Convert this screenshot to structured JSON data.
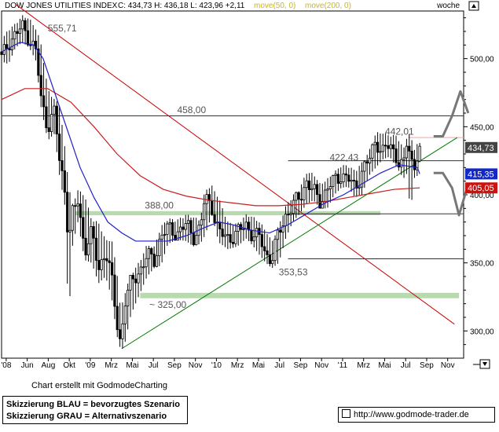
{
  "header": {
    "instrument": "DOW JONES UTILITIES INDEX",
    "quote": "C: 434,73 H: 436,18 L: 423,96 +2,11",
    "ma1": "move(50, 0)",
    "ma2": "move(200, 0)",
    "period": "woche"
  },
  "footer": {
    "credit": "Chart erstellt mit GodmodeCharting",
    "scenario_blue": "Skizzierung BLAU = bevorzugtes Szenario",
    "scenario_grey": "Skizzierung GRAU = Alternativszenario",
    "link": "http://www.godmode-trader.de"
  },
  "colors": {
    "ma50": "#1e1ec8",
    "ma200": "#c81e1e",
    "downtrend": "#cc0000",
    "uptrend": "#007a00",
    "zone": "#a9d6a0",
    "scenario": "#777777",
    "price_tag": "#444444",
    "ma50_tag": "#1428c8",
    "ma200_tag": "#cc1111"
  },
  "chart_data": {
    "type": "candlestick",
    "title": "DOW JONES UTILITIES INDEX",
    "period": "woche",
    "ylim": [
      280,
      535
    ],
    "y_ticks": [
      "300,00",
      "350,00",
      "400,00",
      "450,00",
      "500,00"
    ],
    "x_ticks": [
      "'08",
      "Jun",
      "Aug",
      "Okt",
      "'09",
      "Mrz",
      "Mai",
      "Jul",
      "Sep",
      "Nov",
      "'10",
      "Mrz",
      "Mai",
      "Jul",
      "Sep",
      "Nov",
      "'11",
      "Mrz",
      "Mai",
      "Jul",
      "Sep",
      "Nov"
    ],
    "last": {
      "close": 434.73,
      "high": 436.18,
      "low": 423.96,
      "change": 2.11
    },
    "right_tags": [
      {
        "label": "434,73",
        "value": 434.73,
        "kind": "price"
      },
      {
        "label": "415,35",
        "value": 415.35,
        "kind": "ma50"
      },
      {
        "label": "405,05",
        "value": 405.05,
        "kind": "ma200"
      }
    ],
    "horizontal_levels": [
      {
        "label": "458,00",
        "value": 458.0,
        "color": "black"
      },
      {
        "label": "442,01",
        "value": 442.01,
        "color": "pink"
      },
      {
        "label": "",
        "value": 425.0,
        "color": "black"
      },
      {
        "label": "",
        "value": 386.0,
        "color": "black"
      },
      {
        "label": "",
        "value": 353.0,
        "color": "black"
      }
    ],
    "zones": [
      {
        "label": "388,00",
        "from": 385.0,
        "to": 388.0
      },
      {
        "label": "~ 325,00",
        "from": 324.0,
        "to": 328.0
      }
    ],
    "annotations": [
      {
        "label": "555,71",
        "value": 555.71
      },
      {
        "label": "422,43",
        "value": 422.43
      },
      {
        "label": "353,53",
        "value": 353.53
      }
    ],
    "trendlines": [
      {
        "name": "downtrend",
        "points": [
          [
            0.03,
            540
          ],
          [
            0.98,
            305
          ]
        ]
      },
      {
        "name": "uptrend",
        "points": [
          [
            0.26,
            287
          ],
          [
            0.986,
            442
          ]
        ]
      }
    ],
    "scenarios": [
      {
        "name": "grau-oben",
        "points": [
          [
            0.935,
            443
          ],
          [
            0.955,
            443
          ],
          [
            0.975,
            458
          ],
          [
            0.993,
            476
          ],
          [
            1.01,
            460
          ]
        ]
      },
      {
        "name": "grau-unten",
        "points": [
          [
            0.935,
            416
          ],
          [
            0.955,
            416
          ],
          [
            0.975,
            405
          ],
          [
            0.99,
            385
          ],
          [
            1.01,
            408
          ]
        ]
      }
    ],
    "candle_anchors": [
      [
        0.0,
        505,
        500,
        512,
        498
      ],
      [
        0.015,
        500,
        512,
        520,
        496
      ],
      [
        0.03,
        512,
        518,
        524,
        508
      ],
      [
        0.045,
        518,
        523,
        530,
        512
      ],
      [
        0.06,
        523,
        515,
        528,
        508
      ],
      [
        0.075,
        515,
        505,
        520,
        498
      ],
      [
        0.085,
        505,
        470,
        510,
        465
      ],
      [
        0.1,
        470,
        450,
        476,
        440
      ],
      [
        0.115,
        450,
        462,
        468,
        445
      ],
      [
        0.125,
        462,
        425,
        466,
        415
      ],
      [
        0.138,
        425,
        402,
        430,
        390
      ],
      [
        0.145,
        402,
        365,
        408,
        300
      ],
      [
        0.152,
        365,
        385,
        390,
        360
      ],
      [
        0.165,
        385,
        395,
        402,
        380
      ],
      [
        0.18,
        395,
        360,
        398,
        352
      ],
      [
        0.195,
        360,
        372,
        380,
        350
      ],
      [
        0.21,
        372,
        345,
        378,
        335
      ],
      [
        0.225,
        345,
        360,
        365,
        340
      ],
      [
        0.238,
        360,
        338,
        366,
        325
      ],
      [
        0.25,
        338,
        305,
        342,
        296
      ],
      [
        0.258,
        305,
        290,
        312,
        286
      ],
      [
        0.265,
        290,
        320,
        325,
        288
      ],
      [
        0.28,
        320,
        335,
        340,
        312
      ],
      [
        0.3,
        335,
        345,
        350,
        328
      ],
      [
        0.315,
        345,
        355,
        362,
        340
      ],
      [
        0.33,
        355,
        352,
        360,
        346
      ],
      [
        0.345,
        352,
        370,
        375,
        348
      ],
      [
        0.36,
        370,
        375,
        381,
        364
      ],
      [
        0.38,
        375,
        372,
        380,
        367
      ],
      [
        0.4,
        372,
        378,
        384,
        366
      ],
      [
        0.415,
        378,
        370,
        382,
        362
      ],
      [
        0.43,
        370,
        375,
        380,
        364
      ],
      [
        0.44,
        375,
        398,
        402,
        370
      ],
      [
        0.455,
        398,
        392,
        405,
        385
      ],
      [
        0.47,
        392,
        372,
        396,
        365
      ],
      [
        0.49,
        372,
        368,
        378,
        360
      ],
      [
        0.51,
        368,
        372,
        377,
        362
      ],
      [
        0.53,
        372,
        378,
        384,
        368
      ],
      [
        0.545,
        378,
        370,
        382,
        362
      ],
      [
        0.56,
        370,
        368,
        378,
        355
      ],
      [
        0.572,
        368,
        356,
        372,
        350
      ],
      [
        0.585,
        356,
        353,
        364,
        346
      ],
      [
        0.6,
        353,
        372,
        376,
        350
      ],
      [
        0.615,
        372,
        385,
        390,
        368
      ],
      [
        0.63,
        385,
        392,
        398,
        380
      ],
      [
        0.645,
        392,
        398,
        403,
        386
      ],
      [
        0.66,
        398,
        410,
        415,
        393
      ],
      [
        0.675,
        410,
        402,
        414,
        396
      ],
      [
        0.69,
        402,
        395,
        406,
        390
      ],
      [
        0.705,
        395,
        405,
        410,
        390
      ],
      [
        0.72,
        405,
        410,
        415,
        400
      ],
      [
        0.735,
        410,
        415,
        420,
        405
      ],
      [
        0.75,
        415,
        412,
        420,
        406
      ],
      [
        0.765,
        412,
        404,
        416,
        398
      ],
      [
        0.78,
        404,
        418,
        422,
        400
      ],
      [
        0.795,
        418,
        425,
        430,
        414
      ],
      [
        0.81,
        425,
        440,
        444,
        420
      ],
      [
        0.825,
        440,
        432,
        444,
        426
      ],
      [
        0.84,
        432,
        436,
        442,
        428
      ],
      [
        0.855,
        436,
        428,
        442,
        420
      ],
      [
        0.87,
        428,
        420,
        432,
        412
      ],
      [
        0.878,
        420,
        440,
        443,
        416
      ],
      [
        0.885,
        440,
        428,
        443,
        385
      ],
      [
        0.892,
        428,
        418,
        432,
        412
      ],
      [
        0.9,
        418,
        432,
        436,
        414
      ],
      [
        0.905,
        432,
        434.73,
        436.18,
        423.96
      ]
    ],
    "ma50_anchors": [
      [
        0.0,
        505
      ],
      [
        0.04,
        512
      ],
      [
        0.07,
        510
      ],
      [
        0.09,
        500
      ],
      [
        0.11,
        480
      ],
      [
        0.14,
        450
      ],
      [
        0.17,
        420
      ],
      [
        0.2,
        398
      ],
      [
        0.23,
        380
      ],
      [
        0.26,
        372
      ],
      [
        0.29,
        366
      ],
      [
        0.32,
        366
      ],
      [
        0.36,
        366
      ],
      [
        0.4,
        370
      ],
      [
        0.44,
        376
      ],
      [
        0.47,
        380
      ],
      [
        0.5,
        378
      ],
      [
        0.54,
        374
      ],
      [
        0.58,
        372
      ],
      [
        0.62,
        378
      ],
      [
        0.66,
        386
      ],
      [
        0.7,
        394
      ],
      [
        0.74,
        400
      ],
      [
        0.78,
        408
      ],
      [
        0.82,
        416
      ],
      [
        0.86,
        422
      ],
      [
        0.9,
        420
      ],
      [
        0.905,
        415.35
      ]
    ],
    "ma200_anchors": [
      [
        0.0,
        470
      ],
      [
        0.05,
        478
      ],
      [
        0.1,
        478
      ],
      [
        0.15,
        468
      ],
      [
        0.2,
        450
      ],
      [
        0.25,
        430
      ],
      [
        0.3,
        414
      ],
      [
        0.35,
        404
      ],
      [
        0.4,
        399
      ],
      [
        0.45,
        396
      ],
      [
        0.5,
        394
      ],
      [
        0.55,
        392
      ],
      [
        0.6,
        392
      ],
      [
        0.65,
        393
      ],
      [
        0.7,
        395
      ],
      [
        0.75,
        398
      ],
      [
        0.8,
        401
      ],
      [
        0.85,
        404
      ],
      [
        0.9,
        405
      ],
      [
        0.905,
        405.05
      ]
    ]
  }
}
